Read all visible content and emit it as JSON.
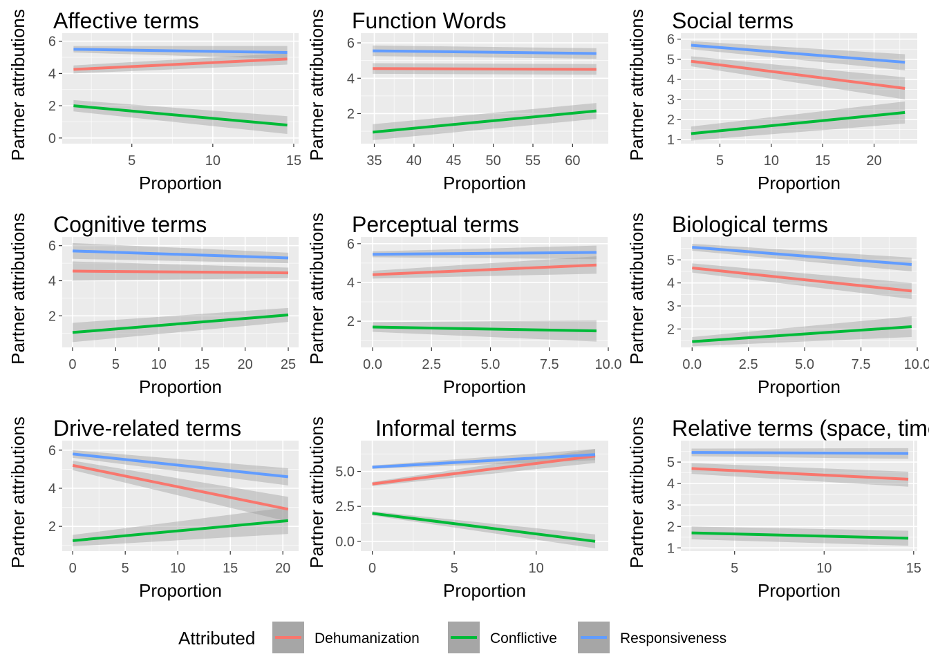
{
  "legend": {
    "title": "Attributed",
    "items": [
      {
        "label": "Dehumanization",
        "color": "#F8766D"
      },
      {
        "label": "Conflictive",
        "color": "#00BA38"
      },
      {
        "label": "Responsiveness",
        "color": "#619CFF"
      }
    ]
  },
  "colors": {
    "panel_background": "#EBEBEB",
    "grid": "#FFFFFF",
    "ribbon": "#999999"
  },
  "chart_data": [
    {
      "type": "line",
      "title": "Affective terms",
      "xlabel": "Proportion",
      "ylabel": "Partner attributions",
      "xlim": [
        0.7,
        15.3
      ],
      "ylim": [
        -0.35,
        6.5
      ],
      "xticks": [
        5,
        10,
        15
      ],
      "xtick_labels": [
        "5",
        "10",
        "15"
      ],
      "yticks": [
        0,
        2,
        4,
        6
      ],
      "ytick_labels": [
        "0",
        "2",
        "4",
        "6"
      ],
      "series": [
        {
          "name": "Dehumanization",
          "x": [
            1.4,
            14.6
          ],
          "y": [
            4.25,
            4.9
          ],
          "band": [
            0.25,
            0.35
          ]
        },
        {
          "name": "Conflictive",
          "x": [
            1.4,
            14.6
          ],
          "y": [
            2.0,
            0.8
          ],
          "band": [
            0.35,
            0.55
          ]
        },
        {
          "name": "Responsiveness",
          "x": [
            1.4,
            14.6
          ],
          "y": [
            5.5,
            5.3
          ],
          "band": [
            0.2,
            0.4
          ]
        }
      ]
    },
    {
      "type": "line",
      "title": "Function Words",
      "xlabel": "Proportion",
      "ylabel": "Partner attributions",
      "xlim": [
        33.3,
        64.5
      ],
      "ylim": [
        0.3,
        6.55
      ],
      "xticks": [
        35,
        40,
        45,
        50,
        55,
        60
      ],
      "xtick_labels": [
        "35",
        "40",
        "45",
        "50",
        "55",
        "60"
      ],
      "yticks": [
        2,
        4,
        6
      ],
      "ytick_labels": [
        "2",
        "4",
        "6"
      ],
      "series": [
        {
          "name": "Dehumanization",
          "x": [
            34.8,
            63.0
          ],
          "y": [
            4.55,
            4.5
          ],
          "band": [
            0.3,
            0.3
          ]
        },
        {
          "name": "Conflictive",
          "x": [
            34.8,
            63.0
          ],
          "y": [
            0.95,
            2.15
          ],
          "band": [
            0.45,
            0.45
          ]
        },
        {
          "name": "Responsiveness",
          "x": [
            34.8,
            63.0
          ],
          "y": [
            5.55,
            5.4
          ],
          "band": [
            0.3,
            0.3
          ]
        }
      ]
    },
    {
      "type": "line",
      "title": "Social terms",
      "xlabel": "Proportion",
      "ylabel": "Partner attributions",
      "xlim": [
        1.2,
        24.2
      ],
      "ylim": [
        0.8,
        6.3
      ],
      "xticks": [
        5,
        10,
        15,
        20
      ],
      "xtick_labels": [
        "5",
        "10",
        "15",
        "20"
      ],
      "yticks": [
        1,
        2,
        3,
        4,
        5,
        6
      ],
      "ytick_labels": [
        "1",
        "2",
        "3",
        "4",
        "5",
        "6"
      ],
      "series": [
        {
          "name": "Dehumanization",
          "x": [
            2.2,
            23.0
          ],
          "y": [
            4.9,
            3.55
          ],
          "band": [
            0.25,
            0.55
          ]
        },
        {
          "name": "Conflictive",
          "x": [
            2.2,
            23.0
          ],
          "y": [
            1.3,
            2.35
          ],
          "band": [
            0.35,
            0.55
          ]
        },
        {
          "name": "Responsiveness",
          "x": [
            2.2,
            23.0
          ],
          "y": [
            5.7,
            4.85
          ],
          "band": [
            0.2,
            0.4
          ]
        }
      ]
    },
    {
      "type": "line",
      "title": "Cognitive terms",
      "xlabel": "Proportion",
      "ylabel": "Partner attributions",
      "xlim": [
        -1.2,
        26.2
      ],
      "ylim": [
        0.2,
        6.5
      ],
      "xticks": [
        0,
        5,
        10,
        15,
        20,
        25
      ],
      "xtick_labels": [
        "0",
        "5",
        "10",
        "15",
        "20",
        "25"
      ],
      "yticks": [
        2,
        4,
        6
      ],
      "ytick_labels": [
        "2",
        "4",
        "6"
      ],
      "series": [
        {
          "name": "Dehumanization",
          "x": [
            0,
            25
          ],
          "y": [
            4.55,
            4.45
          ],
          "band": [
            0.55,
            0.3
          ]
        },
        {
          "name": "Conflictive",
          "x": [
            0,
            25
          ],
          "y": [
            1.05,
            2.05
          ],
          "band": [
            0.55,
            0.4
          ]
        },
        {
          "name": "Responsiveness",
          "x": [
            0,
            25
          ],
          "y": [
            5.7,
            5.3
          ],
          "band": [
            0.45,
            0.3
          ]
        }
      ]
    },
    {
      "type": "line",
      "title": "Perceptual terms",
      "xlabel": "Proportion",
      "ylabel": "Partner attributions",
      "xlim": [
        -0.5,
        10.0
      ],
      "ylim": [
        0.65,
        6.35
      ],
      "xticks": [
        0,
        2.5,
        5,
        7.5,
        10
      ],
      "xtick_labels": [
        "0.0",
        "2.5",
        "5.0",
        "7.5",
        "10.0"
      ],
      "yticks": [
        2,
        4,
        6
      ],
      "ytick_labels": [
        "2",
        "4",
        "6"
      ],
      "series": [
        {
          "name": "Dehumanization",
          "x": [
            0,
            9.5
          ],
          "y": [
            4.4,
            4.9
          ],
          "band": [
            0.2,
            0.45
          ]
        },
        {
          "name": "Conflictive",
          "x": [
            0,
            9.5
          ],
          "y": [
            1.7,
            1.5
          ],
          "band": [
            0.25,
            0.55
          ]
        },
        {
          "name": "Responsiveness",
          "x": [
            0,
            9.5
          ],
          "y": [
            5.45,
            5.55
          ],
          "band": [
            0.15,
            0.35
          ]
        }
      ]
    },
    {
      "type": "line",
      "title": "Biological terms",
      "xlabel": "Proportion",
      "ylabel": "Partner attributions",
      "xlim": [
        -0.5,
        10.0
      ],
      "ylim": [
        1.2,
        6.0
      ],
      "xticks": [
        0,
        2.5,
        5,
        7.5,
        10
      ],
      "xtick_labels": [
        "0.0",
        "2.5",
        "5.0",
        "7.5",
        "10.0"
      ],
      "yticks": [
        2,
        3,
        4,
        5
      ],
      "ytick_labels": [
        "2",
        "3",
        "4",
        "5"
      ],
      "series": [
        {
          "name": "Dehumanization",
          "x": [
            0,
            9.75
          ],
          "y": [
            4.65,
            3.65
          ],
          "band": [
            0.2,
            0.35
          ]
        },
        {
          "name": "Conflictive",
          "x": [
            0,
            9.75
          ],
          "y": [
            1.45,
            2.1
          ],
          "band": [
            0.2,
            0.45
          ]
        },
        {
          "name": "Responsiveness",
          "x": [
            0,
            9.75
          ],
          "y": [
            5.55,
            4.8
          ],
          "band": [
            0.15,
            0.3
          ]
        }
      ]
    },
    {
      "type": "line",
      "title": "Drive-related terms",
      "xlabel": "Proportion",
      "ylabel": "Partner attributions",
      "xlim": [
        -1.0,
        21.5
      ],
      "ylim": [
        0.7,
        6.5
      ],
      "xticks": [
        0,
        5,
        10,
        15,
        20
      ],
      "xtick_labels": [
        "0",
        "5",
        "10",
        "15",
        "20"
      ],
      "yticks": [
        2,
        4,
        6
      ],
      "ytick_labels": [
        "2",
        "4",
        "6"
      ],
      "series": [
        {
          "name": "Dehumanization",
          "x": [
            0,
            20.5
          ],
          "y": [
            5.2,
            2.9
          ],
          "band": [
            0.25,
            0.65
          ]
        },
        {
          "name": "Conflictive",
          "x": [
            0,
            20.5
          ],
          "y": [
            1.25,
            2.3
          ],
          "band": [
            0.3,
            0.7
          ]
        },
        {
          "name": "Responsiveness",
          "x": [
            0,
            20.5
          ],
          "y": [
            5.8,
            4.6
          ],
          "band": [
            0.2,
            0.45
          ]
        }
      ]
    },
    {
      "type": "line",
      "title": "Informal terms",
      "xlabel": "Proportion",
      "ylabel": "Partner attributions",
      "xlim": [
        -0.7,
        14.4
      ],
      "ylim": [
        -0.7,
        7.2
      ],
      "xticks": [
        0,
        5,
        10
      ],
      "xtick_labels": [
        "0",
        "5",
        "10"
      ],
      "yticks": [
        0,
        2.5,
        5
      ],
      "ytick_labels": [
        "0.0",
        "2.5",
        "5.0"
      ],
      "series": [
        {
          "name": "Dehumanization",
          "x": [
            0,
            13.6
          ],
          "y": [
            4.1,
            6.1
          ],
          "band": [
            0.15,
            0.5
          ]
        },
        {
          "name": "Conflictive",
          "x": [
            0,
            13.6
          ],
          "y": [
            2.0,
            0.0
          ],
          "band": [
            0.15,
            0.5
          ]
        },
        {
          "name": "Responsiveness",
          "x": [
            0,
            13.6
          ],
          "y": [
            5.3,
            6.2
          ],
          "band": [
            0.12,
            0.4
          ]
        }
      ]
    },
    {
      "type": "line",
      "title": "Relative terms (space, time)",
      "xlabel": "Proportion",
      "ylabel": "Partner attributions",
      "xlim": [
        2.0,
        15.2
      ],
      "ylim": [
        0.85,
        6.0
      ],
      "xticks": [
        5,
        10,
        15
      ],
      "xtick_labels": [
        "5",
        "10",
        "15"
      ],
      "yticks": [
        1,
        2,
        3,
        4,
        5
      ],
      "ytick_labels": [
        "1",
        "2",
        "3",
        "4",
        "5"
      ],
      "series": [
        {
          "name": "Dehumanization",
          "x": [
            2.6,
            14.7
          ],
          "y": [
            4.7,
            4.2
          ],
          "band": [
            0.25,
            0.35
          ]
        },
        {
          "name": "Conflictive",
          "x": [
            2.6,
            14.7
          ],
          "y": [
            1.7,
            1.45
          ],
          "band": [
            0.3,
            0.35
          ]
        },
        {
          "name": "Responsiveness",
          "x": [
            2.6,
            14.7
          ],
          "y": [
            5.45,
            5.4
          ],
          "band": [
            0.18,
            0.25
          ]
        }
      ]
    }
  ]
}
